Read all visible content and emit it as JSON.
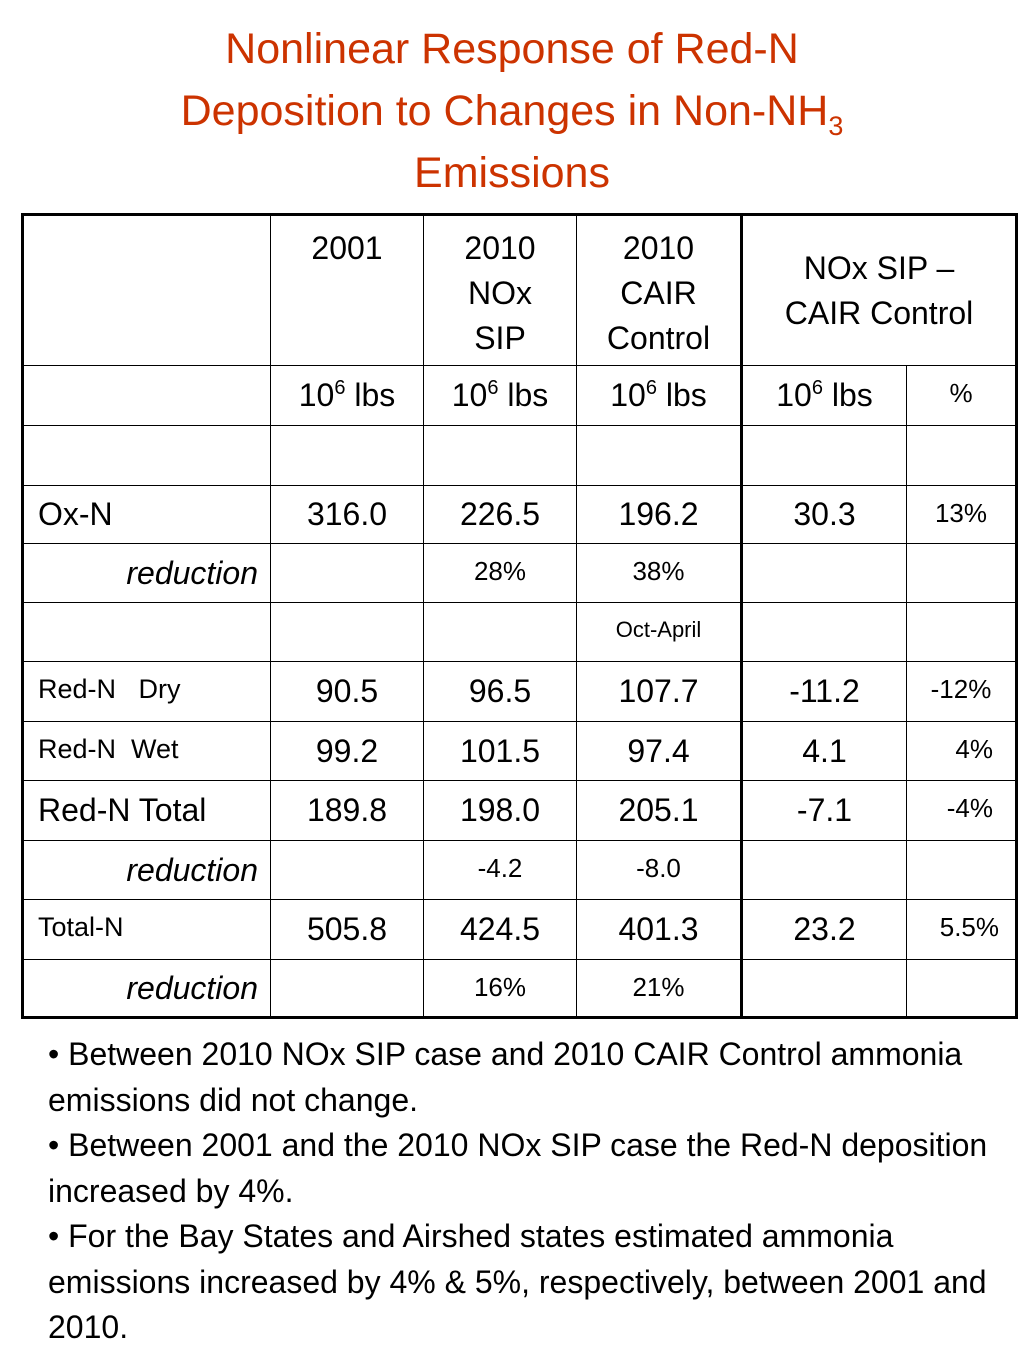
{
  "title": {
    "line1": "Nonlinear Response of Red-N",
    "line2_main": "Deposition to Changes in Non-NH",
    "line2_sub": "3",
    "line3": "Emissions"
  },
  "table": {
    "headers": {
      "blank": "",
      "col2001": "2001",
      "col2010nox": [
        "2010",
        "NOx",
        "SIP"
      ],
      "col2010cair": [
        "2010",
        "CAIR",
        "Control"
      ],
      "colDiff": [
        "NOx SIP –",
        "CAIR Control"
      ]
    },
    "units": {
      "base": "10",
      "exp": "6",
      "unit": " lbs",
      "percent": "%"
    },
    "rows": {
      "oxn": {
        "label": "Ox-N",
        "v2001": "316.0",
        "v2010nox": "226.5",
        "v2010cair": "196.2",
        "diff": "30.3",
        "pct": "13%"
      },
      "oxn_reduction": {
        "label": "reduction",
        "v2010nox": "28%",
        "v2010cair": "38%"
      },
      "oct_april": {
        "v2010cair": "Oct-April"
      },
      "redn_dry": {
        "label": "Red-N   Dry",
        "v2001": "90.5",
        "v2010nox": "96.5",
        "v2010cair": "107.7",
        "diff": "-11.2",
        "pct": "-12%"
      },
      "redn_wet": {
        "label": "Red-N  Wet",
        "v2001": "99.2",
        "v2010nox": "101.5",
        "v2010cair": "97.4",
        "diff": "4.1",
        "pct": "4%"
      },
      "redn_total": {
        "label": "Red-N Total",
        "v2001": "189.8",
        "v2010nox": "198.0",
        "v2010cair": "205.1",
        "diff": "-7.1",
        "pct": "-4%"
      },
      "redn_reduction": {
        "label": "reduction",
        "v2010nox": "-4.2",
        "v2010cair": "-8.0"
      },
      "totaln": {
        "label": "Total-N",
        "v2001": "505.8",
        "v2010nox": "424.5",
        "v2010cair": "401.3",
        "diff": "23.2",
        "pct": "5.5%"
      },
      "totaln_reduction": {
        "label": "reduction",
        "v2010nox": "16%",
        "v2010cair": "21%"
      }
    }
  },
  "bullets": [
    "• Between 2010 NOx SIP case and 2010 CAIR Control ammonia emissions did not change.",
    "• Between 2001 and the 2010 NOx SIP case the Red-N deposition increased by 4%.",
    "• For the Bay States and Airshed states estimated ammonia emissions increased by 4% & 5%, respectively, between 2001 and 2010."
  ]
}
